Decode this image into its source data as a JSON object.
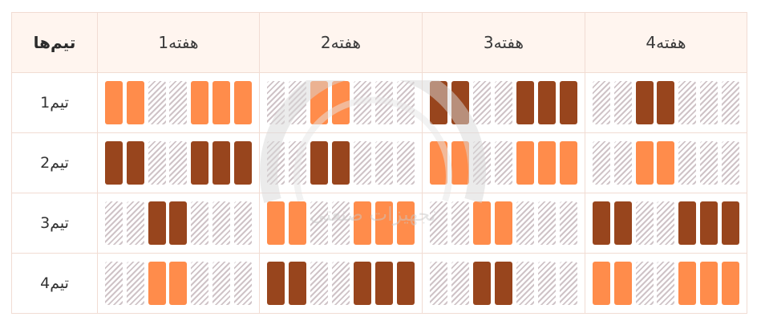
{
  "header": {
    "teams_label": "تیم‌ها",
    "weeks": [
      "هفته1",
      "هفته2",
      "هفته3",
      "هفته4"
    ]
  },
  "legend_colors": {
    "light": "#ff8c4b",
    "dark": "#98451d",
    "empty": "#cfc3c7"
  },
  "rows": [
    {
      "team": "تیم1",
      "weeks": [
        [
          "L",
          "L",
          "H",
          "H",
          "L",
          "L",
          "L"
        ],
        [
          "H",
          "H",
          "L",
          "L",
          "H",
          "H",
          "H"
        ],
        [
          "D",
          "D",
          "H",
          "H",
          "D",
          "D",
          "D"
        ],
        [
          "H",
          "H",
          "D",
          "D",
          "H",
          "H",
          "H"
        ]
      ]
    },
    {
      "team": "تیم2",
      "weeks": [
        [
          "D",
          "D",
          "H",
          "H",
          "D",
          "D",
          "D"
        ],
        [
          "H",
          "H",
          "D",
          "D",
          "H",
          "H",
          "H"
        ],
        [
          "L",
          "L",
          "H",
          "H",
          "L",
          "L",
          "L"
        ],
        [
          "H",
          "H",
          "L",
          "L",
          "H",
          "H",
          "H"
        ]
      ]
    },
    {
      "team": "تیم3",
      "weeks": [
        [
          "H",
          "H",
          "D",
          "D",
          "H",
          "H",
          "H"
        ],
        [
          "L",
          "L",
          "H",
          "H",
          "L",
          "L",
          "L"
        ],
        [
          "H",
          "H",
          "L",
          "L",
          "H",
          "H",
          "H"
        ],
        [
          "D",
          "D",
          "H",
          "H",
          "D",
          "D",
          "D"
        ]
      ]
    },
    {
      "team": "تیم4",
      "weeks": [
        [
          "H",
          "H",
          "L",
          "L",
          "H",
          "H",
          "H"
        ],
        [
          "D",
          "D",
          "H",
          "H",
          "D",
          "D",
          "D"
        ],
        [
          "H",
          "H",
          "D",
          "D",
          "H",
          "H",
          "H"
        ],
        [
          "L",
          "L",
          "H",
          "H",
          "L",
          "L",
          "L"
        ]
      ]
    }
  ],
  "watermark_text": "تجهیزات صنعتی"
}
